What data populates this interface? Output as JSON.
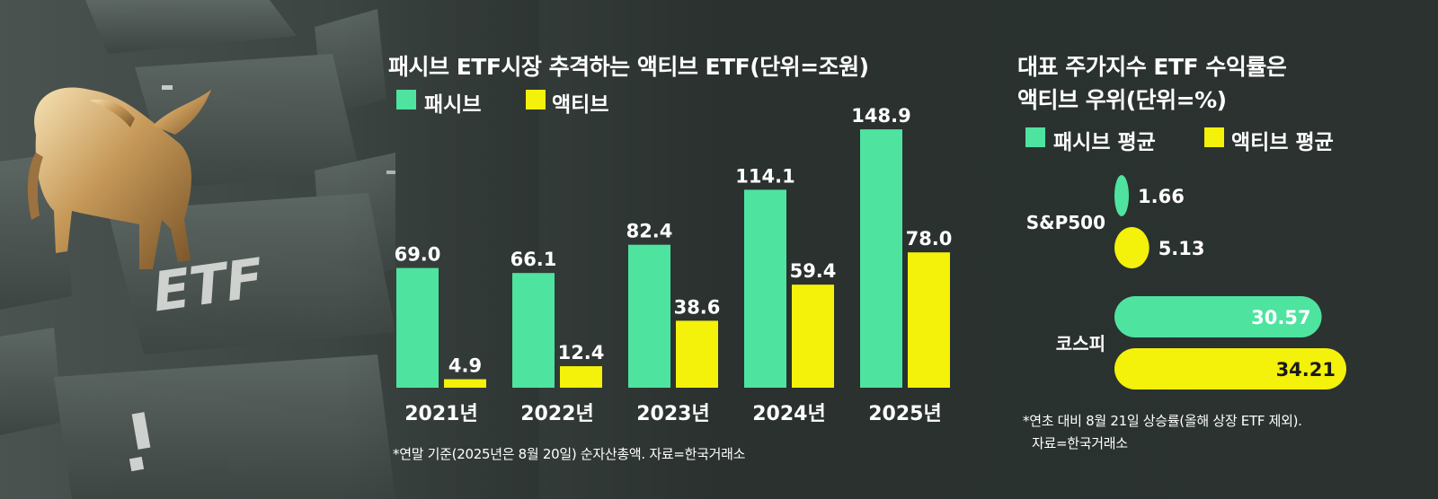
{
  "colors": {
    "passive": "#4fe3a0",
    "active": "#f4f10a",
    "text": "#ffffff",
    "background": "#2b3230"
  },
  "illustration": {
    "name": "bull-on-etf-keyboard",
    "key_label": "ETF"
  },
  "left": {
    "title": "패시브 ETF시장 추격하는 액티브 ETF(단위=조원)",
    "legend": {
      "passive": "패시브",
      "active": "액티브"
    },
    "note": "*연말 기준(2025년은 8월 20일) 순자산총액. 자료=한국거래소"
  },
  "right": {
    "title_line1": "대표 주가지수 ETF 수익률은",
    "title_line2": "액티브 우위(단위=%)",
    "legend": {
      "passive": "패시브 평균",
      "active": "액티브 평균"
    },
    "note_line1": "*연초 대비 8월 21일 상승률(올해 상장 ETF 제외).",
    "note_line2": "자료=한국거래소"
  },
  "chart_data": [
    {
      "type": "bar",
      "title": "패시브 ETF시장 추격하는 액티브 ETF(단위=조원)",
      "categories": [
        "2021년",
        "2022년",
        "2023년",
        "2024년",
        "2025년"
      ],
      "series": [
        {
          "name": "패시브",
          "values": [
            69.0,
            66.1,
            82.4,
            114.1,
            148.9
          ],
          "labels": [
            "69.0",
            "66.1",
            "82.4",
            "114.1",
            "148.9"
          ]
        },
        {
          "name": "액티브",
          "values": [
            4.9,
            12.4,
            38.6,
            59.4,
            78.0
          ],
          "labels": [
            "4.9",
            "12.4",
            "38.6",
            "59.4",
            "78.0"
          ]
        }
      ],
      "ylim": [
        0,
        150
      ],
      "grid": false,
      "legend": "top-left"
    },
    {
      "type": "bar",
      "orientation": "horizontal",
      "title": "대표 주가지수 ETF 수익률은 액티브 우위(단위=%)",
      "categories": [
        "S&P500",
        "코스피"
      ],
      "series": [
        {
          "name": "패시브 평균",
          "values": [
            1.66,
            30.57
          ],
          "labels": [
            "1.66",
            "30.57"
          ]
        },
        {
          "name": "액티브 평균",
          "values": [
            5.13,
            34.21
          ],
          "labels": [
            "5.13",
            "34.21"
          ]
        }
      ],
      "xlim": [
        0,
        34.21
      ],
      "grid": false,
      "legend": "top"
    }
  ]
}
